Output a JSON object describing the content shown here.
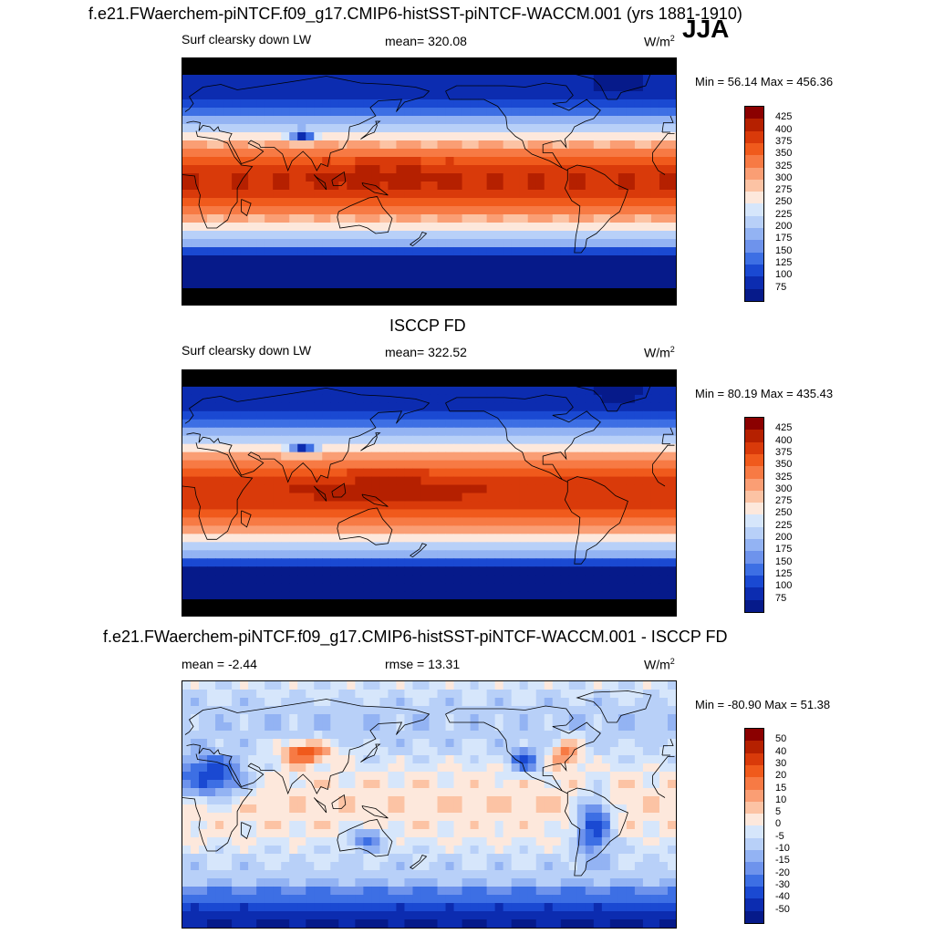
{
  "page_title": "f.e21.FWaerchem-piNTCF.f09_g17.CMIP6-histSST-piNTCF-WACCM.001 (yrs 1881-1910)",
  "season": "JJA",
  "chart_data": [
    {
      "type": "heatmap",
      "name": "model",
      "left_label": "Surf clearsky down LW",
      "center_label": "mean= 320.08",
      "units": "W/m",
      "units_sup": "2",
      "minmax": "Min =  56.14 Max = 456.36",
      "colorbar_ticks": [
        "425",
        "400",
        "375",
        "350",
        "325",
        "300",
        "275",
        "250",
        "225",
        "200",
        "175",
        "150",
        "125",
        "100",
        "75"
      ],
      "colorbar_colors": [
        "#8b0000",
        "#b52000",
        "#d93a0a",
        "#f05a1c",
        "#f77a44",
        "#fa9e74",
        "#fcc3a4",
        "#fde8dc",
        "#d6e6fb",
        "#b8d0f8",
        "#93b3f3",
        "#6e93ec",
        "#3d6fe4",
        "#1a49d2",
        "#0c2cb0",
        "#061a8a"
      ],
      "field": "model"
    },
    {
      "type": "heatmap",
      "name": "obs",
      "title": "ISCCP FD",
      "left_label": "Surf clearsky down LW",
      "center_label": "mean= 322.52",
      "units": "W/m",
      "units_sup": "2",
      "minmax": "Min =  80.19 Max = 435.43",
      "colorbar_ticks": [
        "425",
        "400",
        "375",
        "350",
        "325",
        "300",
        "275",
        "250",
        "225",
        "200",
        "175",
        "150",
        "125",
        "100",
        "75"
      ],
      "colorbar_colors": [
        "#8b0000",
        "#b52000",
        "#d93a0a",
        "#f05a1c",
        "#f77a44",
        "#fa9e74",
        "#fcc3a4",
        "#fde8dc",
        "#d6e6fb",
        "#b8d0f8",
        "#93b3f3",
        "#6e93ec",
        "#3d6fe4",
        "#1a49d2",
        "#0c2cb0",
        "#061a8a"
      ],
      "field": "obs"
    },
    {
      "type": "heatmap",
      "name": "diff",
      "title": "f.e21.FWaerchem-piNTCF.f09_g17.CMIP6-histSST-piNTCF-WACCM.001 - ISCCP FD",
      "left_label": "mean =  -2.44",
      "center_label": "rmse =  13.31",
      "units": "W/m",
      "units_sup": "2",
      "minmax": "Min = -80.90 Max =  51.38",
      "colorbar_ticks": [
        "50",
        "40",
        "30",
        "20",
        "15",
        "10",
        "5",
        "0",
        "-5",
        "-10",
        "-15",
        "-20",
        "-30",
        "-40",
        "-50"
      ],
      "colorbar_colors": [
        "#8b0000",
        "#b52000",
        "#d93a0a",
        "#f05a1c",
        "#f77a44",
        "#fa9e74",
        "#fcc3a4",
        "#fde8dc",
        "#d6e6fb",
        "#b8d0f8",
        "#93b3f3",
        "#6e93ec",
        "#3d6fe4",
        "#1a49d2",
        "#0c2cb0",
        "#061a8a"
      ],
      "field": "diff"
    }
  ]
}
